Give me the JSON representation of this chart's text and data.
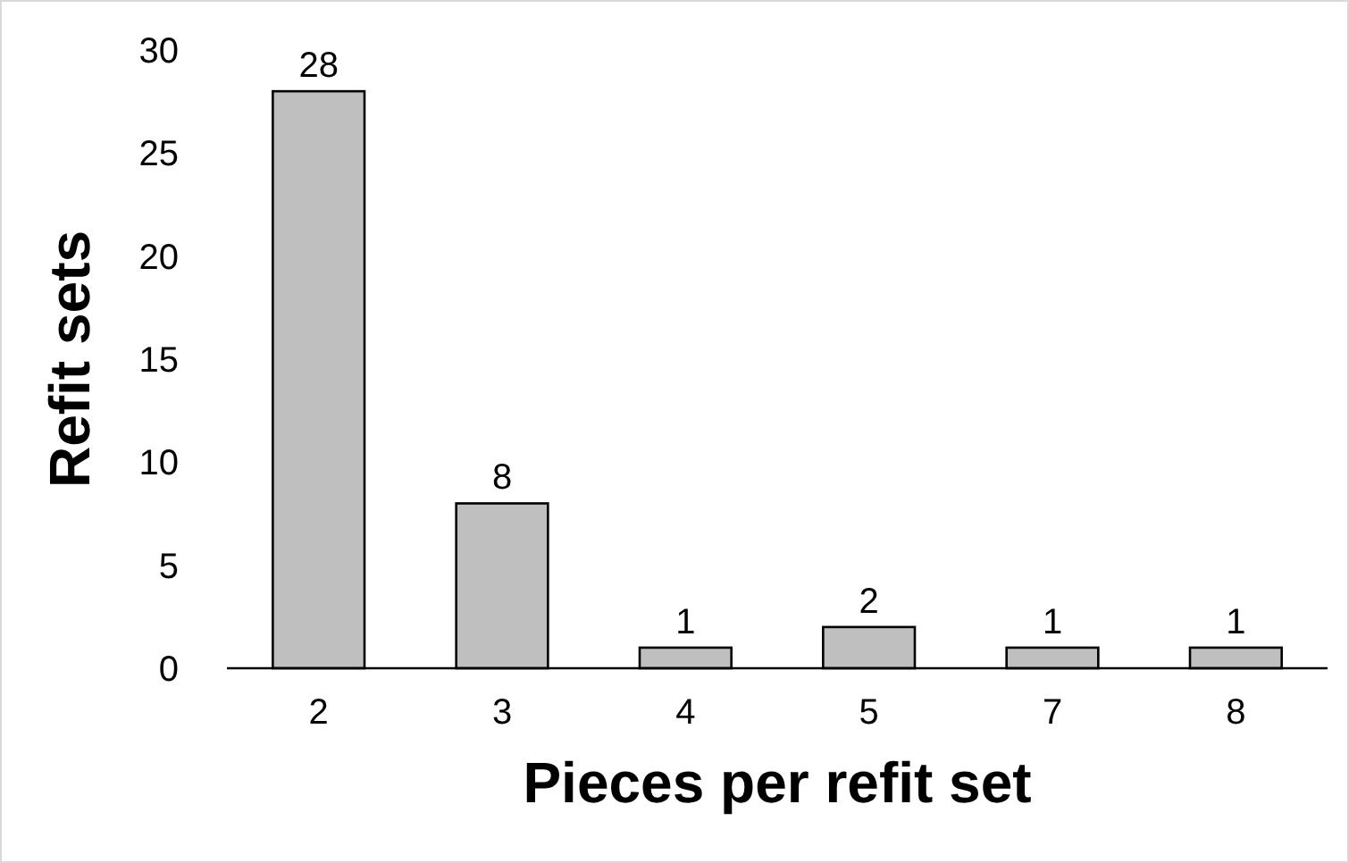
{
  "chart_data": {
    "type": "bar",
    "xlabel": "Pieces per refit set",
    "ylabel": "Refit sets",
    "categories": [
      "2",
      "3",
      "4",
      "5",
      "7",
      "8"
    ],
    "values": [
      28,
      8,
      1,
      2,
      1,
      1
    ],
    "color": "#bfbfbf",
    "ylim": [
      0,
      30
    ],
    "yticks": [
      0,
      5,
      10,
      15,
      20,
      25,
      30
    ],
    "grid": false,
    "data_labels": true
  }
}
